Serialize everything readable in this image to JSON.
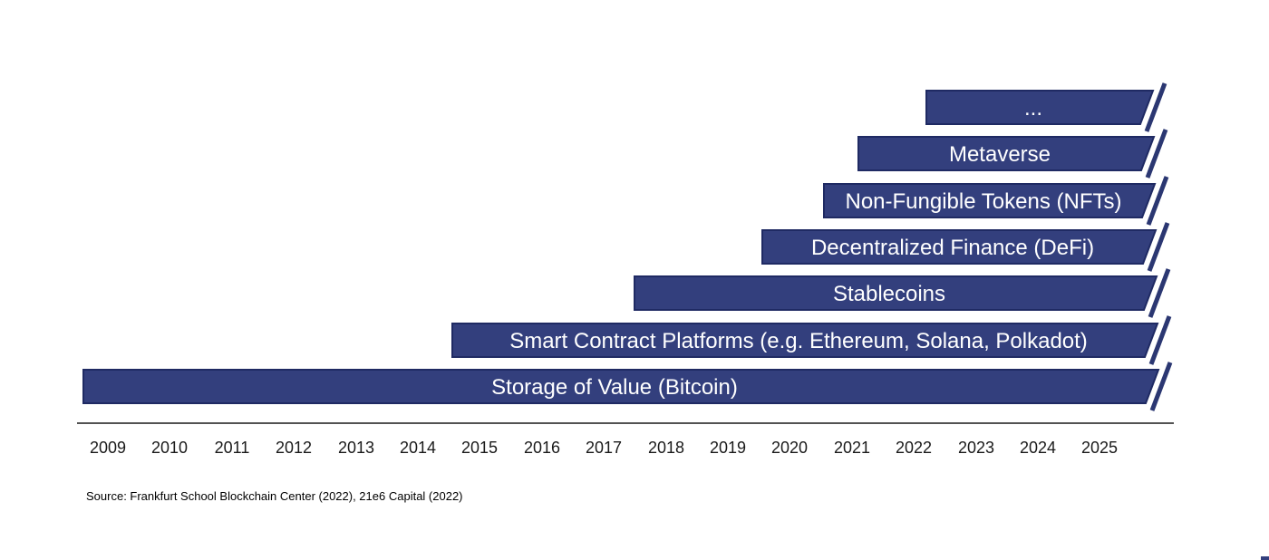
{
  "chart_data": {
    "type": "bar",
    "subtype": "horizontal-timeline",
    "title": "",
    "xlabel": "",
    "ylabel": "",
    "x_axis": {
      "tick_labels": [
        "2009",
        "2010",
        "2011",
        "2012",
        "2013",
        "2014",
        "2015",
        "2016",
        "2017",
        "2018",
        "2019",
        "2020",
        "2021",
        "2022",
        "2023",
        "2024",
        "2025"
      ],
      "range": [
        2008.5,
        2026.5
      ],
      "open_ended_right": true,
      "grid": false
    },
    "bars": [
      {
        "label": "...",
        "start_year": 2022.2,
        "end": "ongoing"
      },
      {
        "label": "Metaverse",
        "start_year": 2021.1,
        "end": "ongoing"
      },
      {
        "label": "Non-Fungible Tokens (NFTs)",
        "start_year": 2020.55,
        "end": "ongoing"
      },
      {
        "label": "Decentralized Finance (DeFi)",
        "start_year": 2019.55,
        "end": "ongoing"
      },
      {
        "label": "Stablecoins",
        "start_year": 2017.5,
        "end": "ongoing"
      },
      {
        "label": "Smart Contract Platforms (e.g. Ethereum, Solana, Polkadot)",
        "start_year": 2014.55,
        "end": "ongoing"
      },
      {
        "label": "Storage of Value (Bitcoin)",
        "start_year": 2008.6,
        "end": "ongoing"
      }
    ],
    "legend": null,
    "colors": {
      "bar_fill": "#333F7D",
      "bar_border": "#1F2A63",
      "break_stripe": "#2B3772",
      "bar_text": "#FFFFFF",
      "axis_line": "#1A1A1A",
      "tick_text": "#1A1A1A"
    }
  },
  "source_note": "Source: Frankfurt School Blockchain Center (2022), 21e6 Capital (2022)"
}
